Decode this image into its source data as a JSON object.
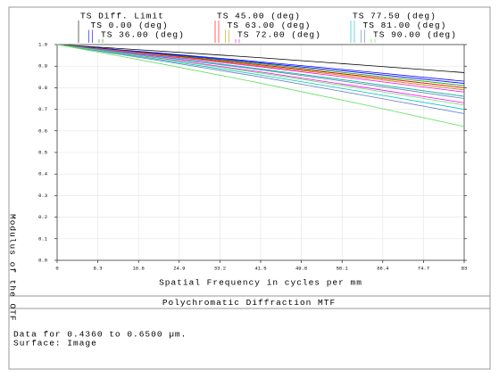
{
  "chart_data": {
    "type": "line",
    "title": "Polychromatic Diffraction MTF",
    "x_label": "Spatial Frequency in cycles per mm",
    "y_label": "Modulus of the OTF",
    "notes": [
      "Data for 0.4360 to 0.6500 µm.",
      "Surface: Image"
    ],
    "x": [
      0,
      20.75,
      41.5,
      62.25,
      83
    ],
    "xlim": [
      0,
      83
    ],
    "xticks": [
      0,
      8.3,
      16.6,
      24.9,
      33.2,
      41.5,
      49.8,
      58.1,
      66.4,
      74.7,
      83
    ],
    "ylim": [
      0,
      1
    ],
    "yticks": [
      {
        "value": 0,
        "label": "0.0"
      },
      0.1,
      0.2,
      0.3,
      0.4,
      0.5,
      0.6,
      0.7,
      0.8,
      0.9,
      {
        "value": 1,
        "label": "1.0"
      }
    ],
    "grid": true,
    "series": [
      {
        "name": "TS Diff. Limit",
        "color": "#000000",
        "values": [
          1,
          0.97,
          0.939,
          0.905,
          0.87
        ]
      },
      {
        "name": "TS 0.00 (deg)",
        "color": "#0000ff",
        "values": [
          1,
          0.961,
          0.92,
          0.876,
          0.83
        ],
        "sagittal_values": [
          1,
          0.959,
          0.915,
          0.869,
          0.82
        ]
      },
      {
        "name": "TS 36.00 (deg)",
        "color": "#00a000",
        "values": [
          1,
          0.956,
          0.911,
          0.861,
          0.81
        ],
        "sagittal_values": [
          1,
          0.954,
          0.906,
          0.854,
          0.8
        ]
      },
      {
        "name": "TS 45.00 (deg)",
        "color": "#ff0000",
        "values": [
          1,
          0.954,
          0.906,
          0.854,
          0.8
        ],
        "sagittal_values": [
          1,
          0.952,
          0.901,
          0.847,
          0.79
        ]
      },
      {
        "name": "TS 63.00 (deg)",
        "color": "#c0a000",
        "values": [
          1,
          0.952,
          0.901,
          0.847,
          0.79
        ],
        "sagittal_values": [
          1,
          0.945,
          0.887,
          0.825,
          0.76
        ]
      },
      {
        "name": "TS 72.00 (deg)",
        "color": "#ff00ff",
        "values": [
          1,
          0.949,
          0.897,
          0.839,
          0.78
        ],
        "sagittal_values": [
          1,
          0.938,
          0.873,
          0.803,
          0.73
        ]
      },
      {
        "name": "TS 77.50 (deg)",
        "color": "#00c0c0",
        "values": [
          1,
          0.945,
          0.887,
          0.825,
          0.76
        ],
        "sagittal_values": [
          1,
          0.931,
          0.859,
          0.781,
          0.7
        ]
      },
      {
        "name": "TS 81.00 (deg)",
        "color": "#6080c0",
        "values": [
          1,
          0.943,
          0.883,
          0.818,
          0.75
        ],
        "sagittal_values": [
          1,
          0.926,
          0.85,
          0.766,
          0.68
        ]
      },
      {
        "name": "TS 90.00 (deg)",
        "color": "#60e060",
        "values": [
          1,
          0.936,
          0.868,
          0.796,
          0.72
        ],
        "sagittal_values": [
          1,
          0.913,
          0.821,
          0.723,
          0.62
        ]
      }
    ]
  }
}
